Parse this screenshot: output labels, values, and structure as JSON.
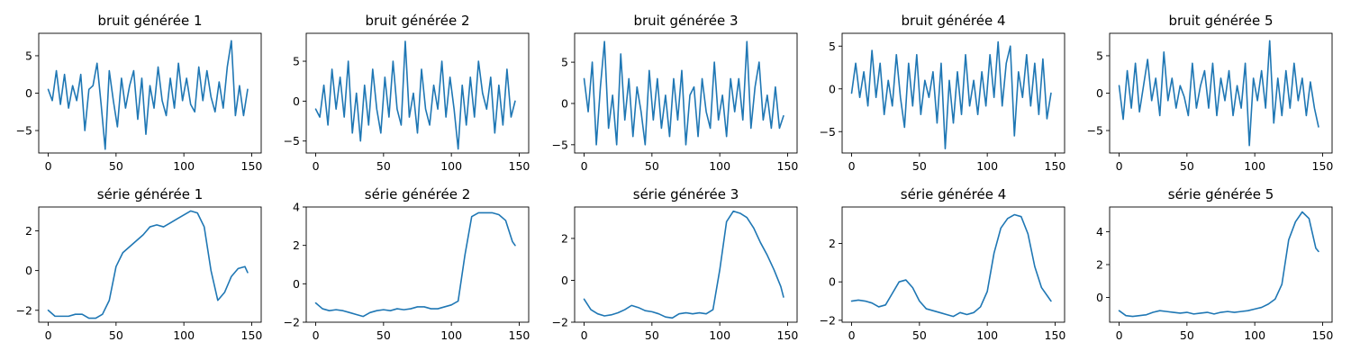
{
  "figure": {
    "line_color": "#1f77b4"
  },
  "chart_data": [
    {
      "type": "line",
      "title": "bruit générée 1",
      "xlim": [
        -7,
        157
      ],
      "ylim": [
        -8,
        8
      ],
      "xticks": [
        0,
        50,
        100,
        150
      ],
      "yticks": [
        -5,
        0,
        5
      ],
      "grid": false,
      "x": [
        0,
        3,
        6,
        9,
        12,
        15,
        18,
        21,
        24,
        27,
        30,
        33,
        36,
        39,
        42,
        45,
        48,
        51,
        54,
        57,
        60,
        63,
        66,
        69,
        72,
        75,
        78,
        81,
        84,
        87,
        90,
        93,
        96,
        99,
        102,
        105,
        108,
        111,
        114,
        117,
        120,
        123,
        126,
        129,
        132,
        135,
        138,
        141,
        144,
        147
      ],
      "y": [
        0.5,
        -1,
        3,
        -1.5,
        2.5,
        -2,
        1,
        -1,
        2.5,
        -5,
        0.5,
        1,
        4,
        -1.5,
        -7.5,
        3,
        -1,
        -4.5,
        2,
        -2,
        1,
        3,
        -3.5,
        2,
        -5.5,
        1,
        -2,
        3.5,
        -1,
        -3,
        2,
        -2,
        4,
        -1,
        2,
        -1.5,
        -2.5,
        3.5,
        -1,
        3,
        -0.5,
        -2.5,
        1.5,
        -2,
        3.5,
        7,
        -3,
        1,
        -3,
        0.5
      ]
    },
    {
      "type": "line",
      "title": "bruit générée 2",
      "xlim": [
        -7,
        157
      ],
      "ylim": [
        -6.5,
        8.5
      ],
      "xticks": [
        0,
        50,
        100,
        150
      ],
      "yticks": [
        -5,
        0,
        5
      ],
      "grid": false,
      "x": [
        0,
        3,
        6,
        9,
        12,
        15,
        18,
        21,
        24,
        27,
        30,
        33,
        36,
        39,
        42,
        45,
        48,
        51,
        54,
        57,
        60,
        63,
        66,
        69,
        72,
        75,
        78,
        81,
        84,
        87,
        90,
        93,
        96,
        99,
        102,
        105,
        108,
        111,
        114,
        117,
        120,
        123,
        126,
        129,
        132,
        135,
        138,
        141,
        144,
        147
      ],
      "y": [
        -1,
        -2,
        2,
        -3,
        4,
        -1,
        3,
        -2,
        5,
        -4,
        1,
        -5,
        2,
        -3,
        4,
        -1,
        -4,
        3,
        -2,
        5,
        -1,
        -3,
        7.5,
        -2,
        1,
        -4,
        4,
        -1,
        -3,
        2,
        -1,
        5,
        -2,
        3,
        -1,
        -6,
        2,
        -3,
        3,
        -2,
        5,
        1,
        -1,
        3,
        -4,
        2,
        -3,
        4,
        -2,
        0
      ]
    },
    {
      "type": "line",
      "title": "bruit générée 3",
      "xlim": [
        -7,
        157
      ],
      "ylim": [
        -6,
        8.5
      ],
      "xticks": [
        0,
        50,
        100,
        150
      ],
      "yticks": [
        -5,
        0,
        5
      ],
      "grid": false,
      "x": [
        0,
        3,
        6,
        9,
        12,
        15,
        18,
        21,
        24,
        27,
        30,
        33,
        36,
        39,
        42,
        45,
        48,
        51,
        54,
        57,
        60,
        63,
        66,
        69,
        72,
        75,
        78,
        81,
        84,
        87,
        90,
        93,
        96,
        99,
        102,
        105,
        108,
        111,
        114,
        117,
        120,
        123,
        126,
        129,
        132,
        135,
        138,
        141,
        144,
        147
      ],
      "y": [
        3,
        -1,
        5,
        -5,
        2,
        7.5,
        -3,
        1,
        -5,
        6,
        -2,
        3,
        -4,
        2,
        -1,
        -5,
        4,
        -2,
        3,
        -3,
        1,
        -4,
        3,
        -2,
        4,
        -5,
        1,
        2,
        -4,
        3,
        -1,
        -3,
        5,
        -2,
        1,
        -4,
        3,
        -1,
        3,
        -2,
        7.5,
        -3,
        2,
        5,
        -2,
        1,
        -3,
        2,
        -3,
        -1.5
      ]
    },
    {
      "type": "line",
      "title": "bruit générée 4",
      "xlim": [
        -7,
        157
      ],
      "ylim": [
        -7.5,
        6.5
      ],
      "xticks": [
        0,
        50,
        100,
        150
      ],
      "yticks": [
        -5,
        0,
        5
      ],
      "grid": false,
      "x": [
        0,
        3,
        6,
        9,
        12,
        15,
        18,
        21,
        24,
        27,
        30,
        33,
        36,
        39,
        42,
        45,
        48,
        51,
        54,
        57,
        60,
        63,
        66,
        69,
        72,
        75,
        78,
        81,
        84,
        87,
        90,
        93,
        96,
        99,
        102,
        105,
        108,
        111,
        114,
        117,
        120,
        123,
        126,
        129,
        132,
        135,
        138,
        141,
        144,
        147
      ],
      "y": [
        -0.5,
        3,
        -1,
        2,
        -2,
        4.5,
        -1,
        3,
        -3,
        1,
        -2,
        4,
        -1,
        -4.5,
        3,
        -2,
        4,
        -3,
        1,
        -1,
        2,
        -4,
        3,
        -7,
        1,
        -4,
        2,
        -3,
        4,
        -2,
        1,
        -3,
        2,
        -2,
        4,
        -1,
        5.5,
        -2,
        3,
        5,
        -5.5,
        2,
        -1,
        4,
        -2,
        3,
        -3,
        3.5,
        -3.5,
        -0.5
      ]
    },
    {
      "type": "line",
      "title": "bruit générée 5",
      "xlim": [
        -7,
        157
      ],
      "ylim": [
        -8,
        8
      ],
      "xticks": [
        0,
        50,
        100,
        150
      ],
      "yticks": [
        -5,
        0,
        5
      ],
      "grid": false,
      "x": [
        0,
        3,
        6,
        9,
        12,
        15,
        18,
        21,
        24,
        27,
        30,
        33,
        36,
        39,
        42,
        45,
        48,
        51,
        54,
        57,
        60,
        63,
        66,
        69,
        72,
        75,
        78,
        81,
        84,
        87,
        90,
        93,
        96,
        99,
        102,
        105,
        108,
        111,
        114,
        117,
        120,
        123,
        126,
        129,
        132,
        135,
        138,
        141,
        144,
        147
      ],
      "y": [
        1,
        -3.5,
        3,
        -2,
        4,
        -2.5,
        1,
        4.5,
        -1,
        2,
        -3,
        5.5,
        -1,
        2,
        -2,
        1,
        -0.5,
        -3,
        4,
        -2,
        1,
        3,
        -2,
        4,
        -3,
        2,
        -1,
        3,
        -3,
        1,
        -2,
        4,
        -7,
        2,
        -1,
        3,
        -2,
        7,
        -4,
        2,
        -3,
        3,
        -2,
        4,
        -1,
        2,
        -3,
        1.5,
        -2,
        -4.5
      ]
    },
    {
      "type": "line",
      "title": "série générée 1",
      "xlim": [
        -7,
        157
      ],
      "ylim": [
        -2.6,
        3.2
      ],
      "xticks": [
        0,
        50,
        100,
        150
      ],
      "yticks": [
        -2,
        0,
        2
      ],
      "grid": false,
      "x": [
        0,
        5,
        10,
        15,
        20,
        25,
        30,
        35,
        40,
        45,
        50,
        55,
        60,
        65,
        70,
        75,
        80,
        85,
        90,
        95,
        100,
        105,
        110,
        115,
        120,
        125,
        130,
        135,
        140,
        145,
        147
      ],
      "y": [
        -2,
        -2.3,
        -2.3,
        -2.3,
        -2.2,
        -2.2,
        -2.4,
        -2.4,
        -2.2,
        -1.5,
        0.2,
        0.9,
        1.2,
        1.5,
        1.8,
        2.2,
        2.3,
        2.2,
        2.4,
        2.6,
        2.8,
        3,
        2.9,
        2.2,
        0,
        -1.5,
        -1.1,
        -0.3,
        0.1,
        0.2,
        -0.1
      ]
    },
    {
      "type": "line",
      "title": "série générée 2",
      "xlim": [
        -7,
        157
      ],
      "ylim": [
        -2,
        4
      ],
      "xticks": [
        0,
        50,
        100,
        150
      ],
      "yticks": [
        -2,
        0,
        2,
        4
      ],
      "grid": false,
      "x": [
        0,
        5,
        10,
        15,
        20,
        25,
        30,
        35,
        40,
        45,
        50,
        55,
        60,
        65,
        70,
        75,
        80,
        85,
        90,
        95,
        100,
        105,
        110,
        115,
        120,
        125,
        130,
        135,
        140,
        145,
        147
      ],
      "y": [
        -1,
        -1.3,
        -1.4,
        -1.35,
        -1.4,
        -1.5,
        -1.6,
        -1.7,
        -1.5,
        -1.4,
        -1.35,
        -1.4,
        -1.3,
        -1.35,
        -1.3,
        -1.2,
        -1.2,
        -1.3,
        -1.3,
        -1.2,
        -1.1,
        -0.9,
        1.5,
        3.5,
        3.7,
        3.7,
        3.7,
        3.6,
        3.3,
        2.2,
        2
      ]
    },
    {
      "type": "line",
      "title": "série générée 3",
      "xlim": [
        -7,
        157
      ],
      "ylim": [
        -2,
        3.5
      ],
      "xticks": [
        0,
        50,
        100,
        150
      ],
      "yticks": [
        -2,
        0,
        2
      ],
      "grid": false,
      "x": [
        0,
        5,
        10,
        15,
        20,
        25,
        30,
        35,
        40,
        45,
        50,
        55,
        60,
        65,
        70,
        75,
        80,
        85,
        90,
        95,
        100,
        105,
        110,
        115,
        120,
        125,
        130,
        135,
        140,
        145,
        147
      ],
      "y": [
        -0.9,
        -1.4,
        -1.6,
        -1.7,
        -1.65,
        -1.55,
        -1.4,
        -1.2,
        -1.3,
        -1.45,
        -1.5,
        -1.6,
        -1.75,
        -1.8,
        -1.6,
        -1.55,
        -1.6,
        -1.55,
        -1.6,
        -1.4,
        0.5,
        2.8,
        3.3,
        3.2,
        3,
        2.5,
        1.8,
        1.2,
        0.5,
        -0.3,
        -0.8
      ]
    },
    {
      "type": "line",
      "title": "série générée 4",
      "xlim": [
        -7,
        157
      ],
      "ylim": [
        -2.1,
        3.9
      ],
      "xticks": [
        0,
        50,
        100,
        150
      ],
      "yticks": [
        -2,
        0,
        2
      ],
      "grid": false,
      "x": [
        0,
        5,
        10,
        15,
        20,
        25,
        30,
        35,
        40,
        45,
        50,
        55,
        60,
        65,
        70,
        75,
        80,
        85,
        90,
        95,
        100,
        105,
        110,
        115,
        120,
        125,
        130,
        135,
        140,
        145,
        147
      ],
      "y": [
        -1,
        -0.95,
        -1,
        -1.1,
        -1.3,
        -1.2,
        -0.6,
        0,
        0.1,
        -0.3,
        -1,
        -1.4,
        -1.5,
        -1.6,
        -1.7,
        -1.8,
        -1.6,
        -1.7,
        -1.6,
        -1.3,
        -0.5,
        1.5,
        2.8,
        3.3,
        3.5,
        3.4,
        2.5,
        0.8,
        -0.3,
        -0.8,
        -1
      ]
    },
    {
      "type": "line",
      "title": "série générée 5",
      "xlim": [
        -7,
        157
      ],
      "ylim": [
        -1.5,
        5.5
      ],
      "xticks": [
        0,
        50,
        100,
        150
      ],
      "yticks": [
        0,
        2,
        4
      ],
      "grid": false,
      "x": [
        0,
        5,
        10,
        15,
        20,
        25,
        30,
        35,
        40,
        45,
        50,
        55,
        60,
        65,
        70,
        75,
        80,
        85,
        90,
        95,
        100,
        105,
        110,
        115,
        120,
        125,
        130,
        135,
        140,
        145,
        147
      ],
      "y": [
        -0.8,
        -1.1,
        -1.15,
        -1.1,
        -1.05,
        -0.9,
        -0.8,
        -0.85,
        -0.9,
        -0.95,
        -0.9,
        -1,
        -0.95,
        -0.9,
        -1,
        -0.9,
        -0.85,
        -0.9,
        -0.85,
        -0.8,
        -0.7,
        -0.6,
        -0.4,
        -0.1,
        0.8,
        3.5,
        4.6,
        5.2,
        4.8,
        3,
        2.8
      ]
    }
  ]
}
